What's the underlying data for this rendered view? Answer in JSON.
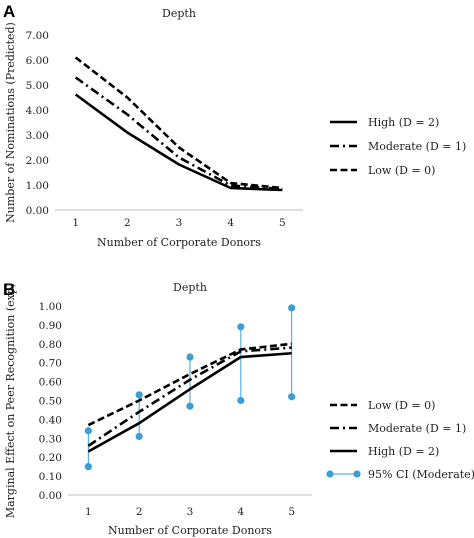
{
  "chart_data": [
    {
      "panel": "A",
      "type": "line",
      "title": "Depth",
      "xlabel": "Number of Corporate Donors",
      "ylabel": "Number of Nominations (Predicted)",
      "x": [
        1,
        2,
        3,
        4,
        5
      ],
      "ylim": [
        0,
        7
      ],
      "yticks": [
        "0.00",
        "1.00",
        "2.00",
        "3.00",
        "4.00",
        "5.00",
        "6.00",
        "7.00"
      ],
      "xticks": [
        "1",
        "2",
        "3",
        "4",
        "5"
      ],
      "legend_position": "right",
      "series": [
        {
          "name": "High (D = 2)",
          "style": "solid",
          "values": [
            4.62,
            3.1,
            1.82,
            0.88,
            0.8
          ]
        },
        {
          "name": "Moderate (D = 1)",
          "style": "dashdot",
          "values": [
            5.3,
            3.82,
            2.1,
            0.98,
            0.84
          ]
        },
        {
          "name": "Low (D = 0)",
          "style": "dashed",
          "values": [
            6.1,
            4.5,
            2.5,
            1.08,
            0.88
          ]
        }
      ]
    },
    {
      "panel": "B",
      "type": "line",
      "title": "Depth",
      "xlabel": "Number of Corporate Donors",
      "ylabel": "Marginal Effect on Peer Recognition (exp)",
      "x": [
        1,
        2,
        3,
        4,
        5
      ],
      "ylim": [
        0,
        1
      ],
      "yticks": [
        "0.00",
        "0.10",
        "0.20",
        "0.30",
        "0.40",
        "0.50",
        "0.60",
        "0.70",
        "0.80",
        "0.90",
        "1.00"
      ],
      "xticks": [
        "1",
        "2",
        "3",
        "4",
        "5"
      ],
      "legend_position": "right",
      "series": [
        {
          "name": "Low (D = 0)",
          "style": "dashed",
          "values": [
            0.37,
            0.5,
            0.64,
            0.77,
            0.8
          ]
        },
        {
          "name": "Moderate (D = 1)",
          "style": "dashdot",
          "values": [
            0.26,
            0.44,
            0.61,
            0.76,
            0.78
          ]
        },
        {
          "name": "High (D = 2)",
          "style": "solid",
          "values": [
            0.23,
            0.38,
            0.56,
            0.73,
            0.75
          ]
        }
      ],
      "ci": {
        "name": "95% CI (Moderate)",
        "color": "#3a9fd6",
        "lower": [
          0.15,
          0.31,
          0.47,
          0.5,
          0.52
        ],
        "upper": [
          0.34,
          0.53,
          0.73,
          0.89,
          0.99
        ]
      }
    }
  ]
}
